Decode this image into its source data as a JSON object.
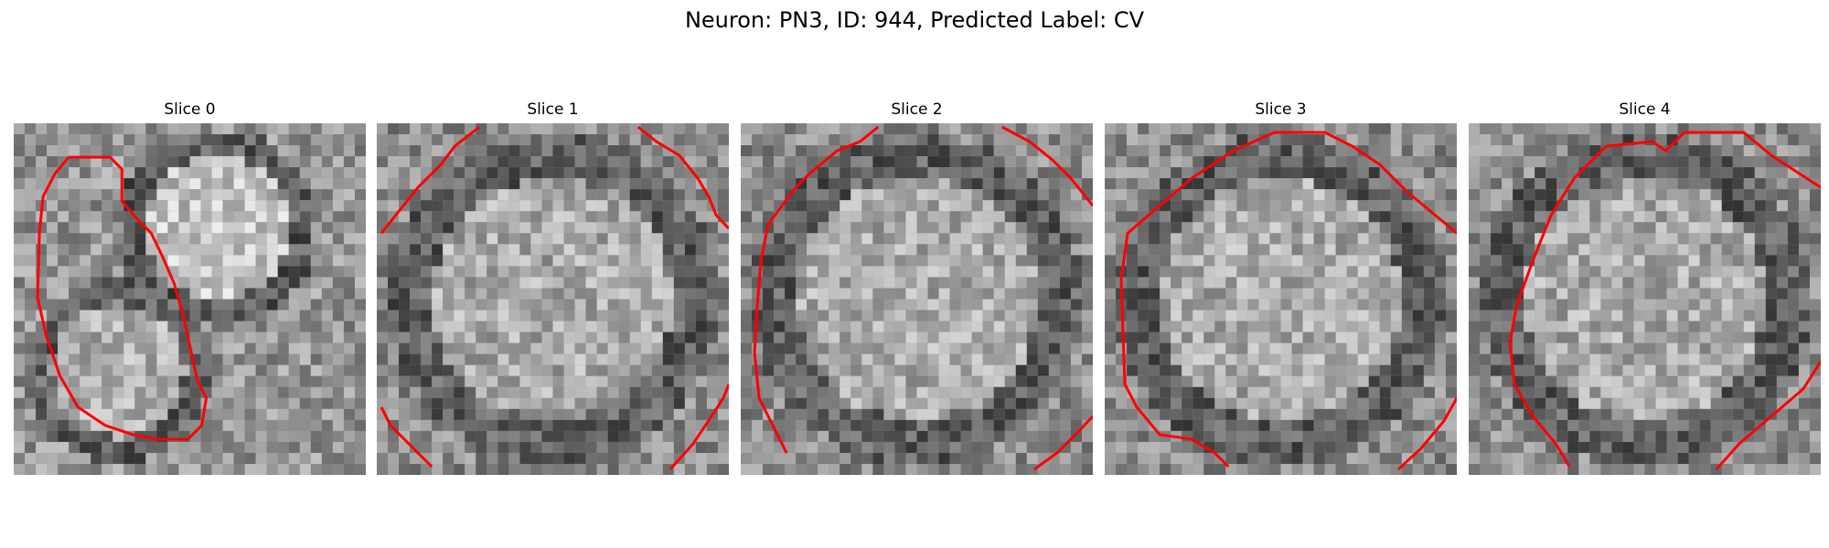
{
  "figure": {
    "title": "Neuron: PN3, ID: 944, Predicted Label: CV"
  },
  "panels": [
    {
      "title": "Slice 0"
    },
    {
      "title": "Slice 1"
    },
    {
      "title": "Slice 2"
    },
    {
      "title": "Slice 3"
    },
    {
      "title": "Slice 4"
    }
  ],
  "colors": {
    "contour": "#ff0000",
    "background": "#ffffff"
  }
}
